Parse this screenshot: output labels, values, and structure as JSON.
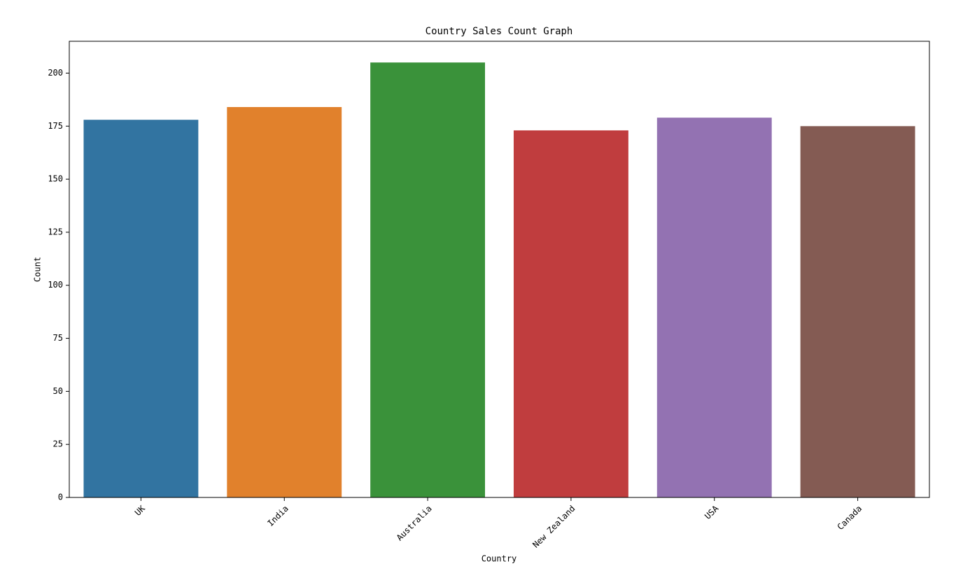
{
  "chart_data": {
    "type": "bar",
    "title": "Country Sales Count Graph",
    "x_label": "Country",
    "y_label": "Count",
    "categories": [
      "UK",
      "India",
      "Australia",
      "New Zealand",
      "USA",
      "Canada"
    ],
    "values": [
      178,
      184,
      205,
      173,
      179,
      175
    ],
    "colors": [
      "#3274a1",
      "#e1812c",
      "#3a923a",
      "#c03d3e",
      "#9372b2",
      "#845b53"
    ],
    "ylim": [
      0,
      215
    ],
    "yticks": [
      0,
      25,
      50,
      75,
      100,
      125,
      150,
      175,
      200
    ],
    "grid": false
  }
}
